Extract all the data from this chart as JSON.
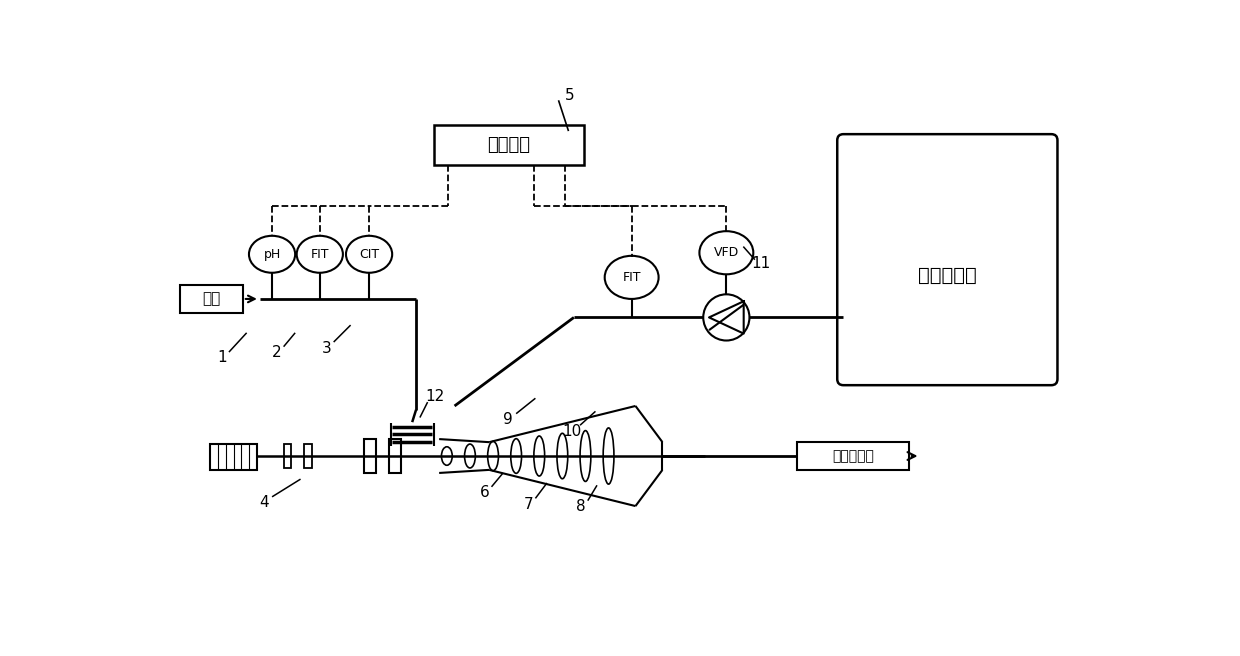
{
  "bg_color": "#ffffff",
  "fig_width": 12.4,
  "fig_height": 6.56,
  "dpi": 100,
  "labels": {
    "sludge_in": "污泥",
    "control_unit": "控制单元",
    "storage_tank": "絮凝剂储罐",
    "sludge_out": "调理后污泥",
    "pH": "pH",
    "FIT1": "FIT",
    "CIT": "CIT",
    "FIT2": "FIT",
    "VFD": "VFD"
  },
  "nums": [
    "1",
    "2",
    "3",
    "4",
    "5",
    "6",
    "7",
    "8",
    "9",
    "10",
    "11",
    "12"
  ]
}
